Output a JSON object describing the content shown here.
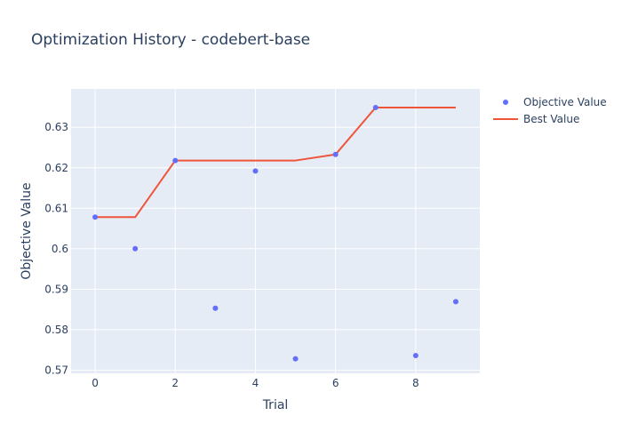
{
  "chart_data": {
    "type": "scatter",
    "title": "Optimization History - codebert-base",
    "xlabel": "Trial",
    "ylabel": "Objective Value",
    "xlim": [
      -0.6,
      9.6
    ],
    "ylim": [
      0.5692,
      0.6395
    ],
    "x_ticks": [
      0,
      2,
      4,
      6,
      8
    ],
    "y_ticks": [
      0.57,
      0.58,
      0.59,
      0.6,
      0.61,
      0.62,
      0.63
    ],
    "x_tick_labels": [
      "0",
      "2",
      "4",
      "6",
      "8"
    ],
    "y_tick_labels": [
      "0.57",
      "0.58",
      "0.59",
      "0.6",
      "0.61",
      "0.62",
      "0.63"
    ],
    "grid": true,
    "legend_position": "top-right outside",
    "series": [
      {
        "name": "Objective Value",
        "kind": "markers",
        "color": "#636efa",
        "x": [
          0,
          1,
          2,
          3,
          4,
          5,
          6,
          7,
          8,
          9
        ],
        "y": [
          0.6078,
          0.6,
          0.6218,
          0.5853,
          0.6192,
          0.5728,
          0.6233,
          0.6349,
          0.5736,
          0.5869
        ]
      },
      {
        "name": "Best Value",
        "kind": "line",
        "color": "#ef553b",
        "x": [
          0,
          1,
          2,
          3,
          4,
          5,
          6,
          7,
          8,
          9
        ],
        "y": [
          0.6078,
          0.6078,
          0.6218,
          0.6218,
          0.6218,
          0.6218,
          0.6233,
          0.6349,
          0.6349,
          0.6349
        ]
      }
    ],
    "colors": {
      "plot_background": "#e5ecf6",
      "grid": "#ffffff",
      "text": "#2a3f5f"
    }
  }
}
